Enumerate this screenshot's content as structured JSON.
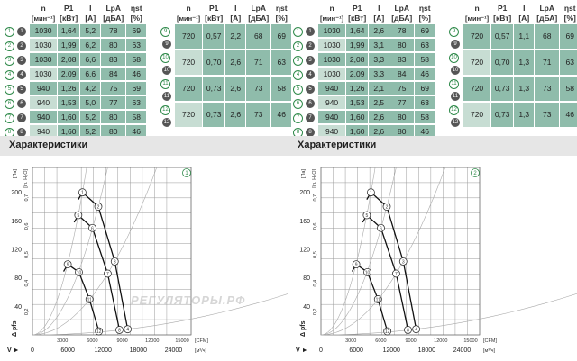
{
  "table": {
    "headers": [
      "n",
      "P1",
      "I",
      "LpA",
      "ηst",
      "[мин⁻¹]",
      "[кВт]",
      "[A]",
      "[дБА]",
      "[%]"
    ],
    "left_rows": [
      {
        "mark": "1",
        "n": "1030",
        "p": "1,64",
        "i": "5,2",
        "lp": "78",
        "e": "69"
      },
      {
        "mark": "2",
        "n": "1030",
        "p": "1,99",
        "i": "6,2",
        "lp": "80",
        "e": "63"
      },
      {
        "mark": "3",
        "n": "1030",
        "p": "2,08",
        "i": "6,6",
        "lp": "83",
        "e": "58"
      },
      {
        "mark": "4",
        "n": "1030",
        "p": "2,09",
        "i": "6,6",
        "lp": "84",
        "e": "46"
      },
      {
        "mark": "5",
        "n": "940",
        "p": "1,26",
        "i": "4,2",
        "lp": "75",
        "e": "69"
      },
      {
        "mark": "6",
        "n": "940",
        "p": "1,53",
        "i": "5,0",
        "lp": "77",
        "e": "63"
      },
      {
        "mark": "7",
        "n": "940",
        "p": "1,60",
        "i": "5,2",
        "lp": "80",
        "e": "58"
      },
      {
        "mark": "8",
        "n": "940",
        "p": "1,60",
        "i": "5,2",
        "lp": "80",
        "e": "46"
      }
    ],
    "left_rows2": [
      {
        "mark": "9",
        "n": "720",
        "p": "0,57",
        "i": "2,2",
        "lp": "68",
        "e": "69"
      },
      {
        "mark": "10",
        "n": "720",
        "p": "0,70",
        "i": "2,6",
        "lp": "71",
        "e": "63"
      },
      {
        "mark": "11",
        "n": "720",
        "p": "0,73",
        "i": "2,6",
        "lp": "73",
        "e": "58"
      },
      {
        "mark": "12",
        "n": "720",
        "p": "0,73",
        "i": "2,6",
        "lp": "73",
        "e": "46"
      }
    ],
    "right_rows": [
      {
        "mark": "1",
        "n": "1030",
        "p": "1,64",
        "i": "2,6",
        "lp": "78",
        "e": "69"
      },
      {
        "mark": "2",
        "n": "1030",
        "p": "1,99",
        "i": "3,1",
        "lp": "80",
        "e": "63"
      },
      {
        "mark": "3",
        "n": "1030",
        "p": "2,08",
        "i": "3,3",
        "lp": "83",
        "e": "58"
      },
      {
        "mark": "4",
        "n": "1030",
        "p": "2,09",
        "i": "3,3",
        "lp": "84",
        "e": "46"
      },
      {
        "mark": "5",
        "n": "940",
        "p": "1,26",
        "i": "2,1",
        "lp": "75",
        "e": "69"
      },
      {
        "mark": "6",
        "n": "940",
        "p": "1,53",
        "i": "2,5",
        "lp": "77",
        "e": "63"
      },
      {
        "mark": "7",
        "n": "940",
        "p": "1,60",
        "i": "2,6",
        "lp": "80",
        "e": "58"
      },
      {
        "mark": "8",
        "n": "940",
        "p": "1,60",
        "i": "2,6",
        "lp": "80",
        "e": "46"
      }
    ],
    "right_rows2": [
      {
        "mark": "9",
        "n": "720",
        "p": "0,57",
        "i": "1,1",
        "lp": "68",
        "e": "69"
      },
      {
        "mark": "10",
        "n": "720",
        "p": "0,70",
        "i": "1,3",
        "lp": "71",
        "e": "63"
      },
      {
        "mark": "11",
        "n": "720",
        "p": "0,73",
        "i": "1,3",
        "lp": "73",
        "e": "58"
      },
      {
        "mark": "12",
        "n": "720",
        "p": "0,73",
        "i": "1,3",
        "lp": "73",
        "e": "46"
      }
    ]
  },
  "section_title": "Характеристики",
  "watermark": "РЕГУЛЯТОРЫ.РФ",
  "chart_data": [
    {
      "type": "line",
      "badge": "1",
      "xlabel": "[м³/ч]",
      "x2label": "[CFM]",
      "ylabel": "Δ pfs",
      "y_unit": "[Па]",
      "y2_unit": "[in. H₂O]",
      "xlim": [
        0,
        27000
      ],
      "ylim": [
        0,
        235
      ],
      "x_ticks": [
        6000,
        12000,
        18000,
        24000
      ],
      "x2_ticks": [
        3000,
        6000,
        9000,
        12000,
        15000
      ],
      "y_ticks": [
        40,
        80,
        120,
        160,
        200
      ],
      "y2_ticks": [
        "0,2",
        "0,4",
        "0,5",
        "0,6",
        "0,7"
      ],
      "series": [
        {
          "name": "1030",
          "points": [
            {
              "m": "1",
              "x": 8500,
              "y": 200
            },
            {
              "m": "2",
              "x": 11200,
              "y": 180
            },
            {
              "m": "3",
              "x": 14000,
              "y": 103
            },
            {
              "m": "4",
              "x": 16200,
              "y": 8
            }
          ]
        },
        {
          "name": "940",
          "points": [
            {
              "m": "5",
              "x": 7800,
              "y": 168
            },
            {
              "m": "6",
              "x": 10200,
              "y": 150
            },
            {
              "m": "7",
              "x": 12800,
              "y": 86
            },
            {
              "m": "8",
              "x": 14800,
              "y": 7
            }
          ]
        },
        {
          "name": "720",
          "points": [
            {
              "m": "9",
              "x": 6000,
              "y": 99
            },
            {
              "m": "10",
              "x": 7900,
              "y": 88
            },
            {
              "m": "11",
              "x": 9700,
              "y": 50
            },
            {
              "m": "12",
              "x": 11300,
              "y": 5
            }
          ]
        }
      ]
    },
    {
      "type": "line",
      "badge": "2",
      "xlabel": "[м³/ч]",
      "x2label": "[CFM]",
      "ylabel": "Δ pfs",
      "y_unit": "[Па]",
      "y2_unit": "[in. H₂O]",
      "xlim": [
        0,
        27000
      ],
      "ylim": [
        0,
        235
      ],
      "x_ticks": [
        6000,
        12000,
        18000,
        24000
      ],
      "x2_ticks": [
        3000,
        6000,
        9000,
        12000,
        15000
      ],
      "y_ticks": [
        40,
        80,
        120,
        160,
        200
      ],
      "y2_ticks": [
        "0,2",
        "0,4",
        "0,5",
        "0,6",
        "0,7"
      ],
      "series": [
        {
          "name": "1030",
          "points": [
            {
              "m": "1",
              "x": 8500,
              "y": 200
            },
            {
              "m": "2",
              "x": 11200,
              "y": 180
            },
            {
              "m": "3",
              "x": 14000,
              "y": 103
            },
            {
              "m": "4",
              "x": 16200,
              "y": 8
            }
          ]
        },
        {
          "name": "940",
          "points": [
            {
              "m": "5",
              "x": 7800,
              "y": 168
            },
            {
              "m": "6",
              "x": 10200,
              "y": 150
            },
            {
              "m": "7",
              "x": 12800,
              "y": 86
            },
            {
              "m": "8",
              "x": 14800,
              "y": 7
            }
          ]
        },
        {
          "name": "720",
          "points": [
            {
              "m": "9",
              "x": 6000,
              "y": 99
            },
            {
              "m": "10",
              "x": 7900,
              "y": 88
            },
            {
              "m": "11",
              "x": 9700,
              "y": 50
            },
            {
              "m": "12",
              "x": 11300,
              "y": 5
            }
          ]
        }
      ]
    }
  ]
}
